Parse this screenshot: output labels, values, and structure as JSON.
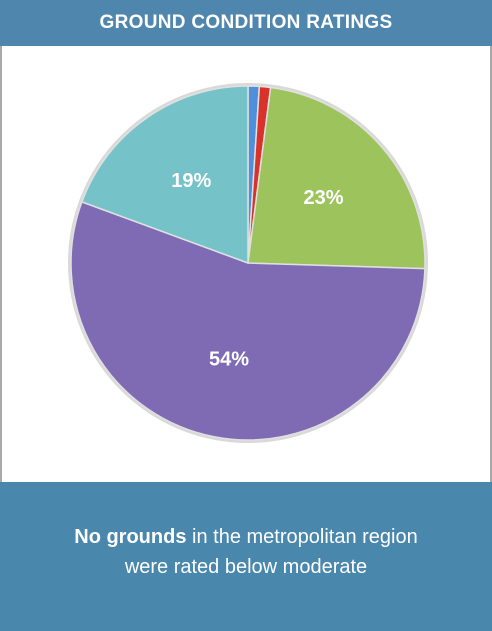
{
  "chart_data": {
    "type": "pie",
    "title": "GROUND CONDITION RATINGS",
    "values": [
      1,
      1,
      23,
      54,
      19
    ],
    "value_labels": [
      null,
      null,
      "23%",
      "54%",
      "19%"
    ],
    "colors": [
      "#4f8fdc",
      "#d8322b",
      "#9cc35c",
      "#7f6bb3",
      "#75c2c8"
    ]
  },
  "footer": {
    "bold": "No grounds",
    "line1": "in the metropolitan region",
    "line2": "were rated below moderate"
  }
}
